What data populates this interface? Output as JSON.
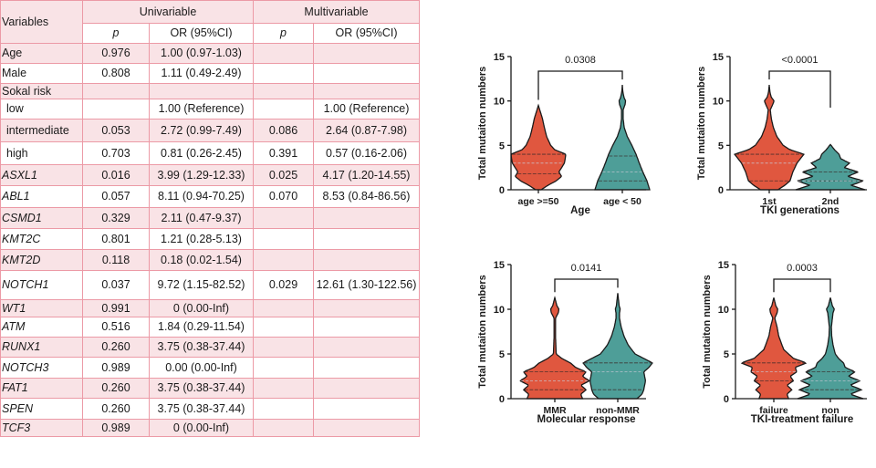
{
  "table": {
    "header": {
      "variables": "Variables",
      "univariable": "Univariable",
      "multivariable": "Multivariable",
      "p": "p",
      "or": "OR (95%CI)"
    },
    "rows": [
      {
        "variable": "Age",
        "italic": false,
        "indent": false,
        "uni_p": "0.976",
        "uni_or": "1.00 (0.97-1.03)",
        "multi_p": "",
        "multi_or": ""
      },
      {
        "variable": "Male",
        "italic": false,
        "indent": false,
        "uni_p": "0.808",
        "uni_or": "1.11 (0.49-2.49)",
        "multi_p": "",
        "multi_or": ""
      },
      {
        "variable": "Sokal risk",
        "italic": false,
        "indent": false,
        "uni_p": "",
        "uni_or": "",
        "multi_p": "",
        "multi_or": ""
      },
      {
        "variable": "low",
        "italic": false,
        "indent": true,
        "uni_p": "",
        "uni_or": "1.00 (Reference)",
        "multi_p": "",
        "multi_or": "1.00 (Reference)"
      },
      {
        "variable": "intermediate",
        "italic": false,
        "indent": true,
        "uni_p": "0.053",
        "uni_or": "2.72 (0.99-7.49)",
        "multi_p": "0.086",
        "multi_or": "2.64 (0.87-7.98)"
      },
      {
        "variable": "high",
        "italic": false,
        "indent": true,
        "uni_p": "0.703",
        "uni_or": "0.81 (0.26-2.45)",
        "multi_p": "0.391",
        "multi_or": "0.57 (0.16-2.06)"
      },
      {
        "variable": "ASXL1",
        "italic": true,
        "indent": false,
        "uni_p": "0.016",
        "uni_or": "3.99 (1.29-12.33)",
        "multi_p": "0.025",
        "multi_or": "4.17 (1.20-14.55)"
      },
      {
        "variable": "ABL1",
        "italic": true,
        "indent": false,
        "uni_p": "0.057",
        "uni_or": "8.11 (0.94-70.25)",
        "multi_p": "0.070",
        "multi_or": "8.53 (0.84-86.56)"
      },
      {
        "variable": "CSMD1",
        "italic": true,
        "indent": false,
        "uni_p": "0.329",
        "uni_or": "2.11 (0.47-9.37)",
        "multi_p": "",
        "multi_or": ""
      },
      {
        "variable": "KMT2C",
        "italic": true,
        "indent": false,
        "uni_p": "0.801",
        "uni_or": "1.21 (0.28-5.13)",
        "multi_p": "",
        "multi_or": ""
      },
      {
        "variable": "KMT2D",
        "italic": true,
        "indent": false,
        "uni_p": "0.118",
        "uni_or": "0.18 (0.02-1.54)",
        "multi_p": "",
        "multi_or": ""
      },
      {
        "variable": "NOTCH1",
        "italic": true,
        "indent": false,
        "uni_p": "0.037",
        "uni_or": "9.72 (1.15-82.52)",
        "multi_p": "0.029",
        "multi_or": "12.61 (1.30-122.56)"
      },
      {
        "variable": "WT1",
        "italic": true,
        "indent": false,
        "uni_p": "0.991",
        "uni_or": "0 (0.00-Inf)",
        "multi_p": "",
        "multi_or": ""
      },
      {
        "variable": "ATM",
        "italic": true,
        "indent": false,
        "uni_p": "0.516",
        "uni_or": "1.84 (0.29-11.54)",
        "multi_p": "",
        "multi_or": ""
      },
      {
        "variable": "RUNX1",
        "italic": true,
        "indent": false,
        "uni_p": "0.260",
        "uni_or": "3.75 (0.38-37.44)",
        "multi_p": "",
        "multi_or": ""
      },
      {
        "variable": "NOTCH3",
        "italic": true,
        "indent": false,
        "uni_p": "0.989",
        "uni_or": "0.00 (0.00-Inf)",
        "multi_p": "",
        "multi_or": ""
      },
      {
        "variable": "FAT1",
        "italic": true,
        "indent": false,
        "uni_p": "0.260",
        "uni_or": "3.75 (0.38-37.44)",
        "multi_p": "",
        "multi_or": ""
      },
      {
        "variable": "SPEN",
        "italic": true,
        "indent": false,
        "uni_p": "0.260",
        "uni_or": "3.75 (0.38-37.44)",
        "multi_p": "",
        "multi_or": ""
      },
      {
        "variable": "TCF3",
        "italic": true,
        "indent": false,
        "uni_p": "0.989",
        "uni_or": "0 (0.00-Inf)",
        "multi_p": "",
        "multi_or": ""
      }
    ]
  },
  "colors": {
    "orange": "#e0573f",
    "teal": "#4e9e98",
    "table_border": "#ec9aa6",
    "table_shade": "#f9e3e6"
  },
  "chart_data": [
    {
      "type": "violin",
      "title": "",
      "xlabel": "Age",
      "ylabel": "Total mutaiton numbers",
      "ylim": [
        0,
        15
      ],
      "yticks": [
        0,
        5,
        10,
        15
      ],
      "categories": [
        "age >=50",
        "age < 50"
      ],
      "p_value": "0.0308",
      "series": [
        {
          "name": "age >=50",
          "color": "orange",
          "min": 0,
          "max": 9.5,
          "q1": 1.8,
          "median": 3.0,
          "q3": 4.0,
          "density": [
            [
              0,
              0.1
            ],
            [
              0.5,
              0.35
            ],
            [
              1,
              0.65
            ],
            [
              1.5,
              0.85
            ],
            [
              2,
              0.75
            ],
            [
              2.5,
              0.85
            ],
            [
              3,
              0.95
            ],
            [
              3.5,
              0.98
            ],
            [
              4,
              1.0
            ],
            [
              4.5,
              0.6
            ],
            [
              5,
              0.45
            ],
            [
              6,
              0.3
            ],
            [
              7,
              0.22
            ],
            [
              8,
              0.15
            ],
            [
              9,
              0.05
            ],
            [
              9.5,
              0
            ]
          ]
        },
        {
          "name": "age < 50",
          "color": "teal",
          "min": 0,
          "max": 11.8,
          "q1": 1.0,
          "median": 2.0,
          "q3": 3.8,
          "density": [
            [
              0,
              1.0
            ],
            [
              1,
              0.9
            ],
            [
              2,
              0.75
            ],
            [
              3,
              0.62
            ],
            [
              4,
              0.5
            ],
            [
              5,
              0.35
            ],
            [
              6,
              0.18
            ],
            [
              7,
              0.07
            ],
            [
              8,
              0.03
            ],
            [
              9,
              0.03
            ],
            [
              9.6,
              0.1
            ],
            [
              10,
              0.12
            ],
            [
              10.4,
              0.06
            ],
            [
              11,
              0.02
            ],
            [
              11.8,
              0
            ]
          ]
        }
      ]
    },
    {
      "type": "violin",
      "title": "",
      "xlabel": "TKI generations",
      "ylabel": "Total mutaiton numbers",
      "ylim": [
        0,
        15
      ],
      "yticks": [
        0,
        5,
        10,
        15
      ],
      "categories": [
        "1st",
        "2nd"
      ],
      "p_value": "<0.0001",
      "series": [
        {
          "name": "1st",
          "color": "orange",
          "min": 0,
          "max": 11.8,
          "q1": 1.0,
          "median": 3.0,
          "q3": 4.0,
          "density": [
            [
              0,
              0.25
            ],
            [
              0.5,
              0.45
            ],
            [
              1,
              0.6
            ],
            [
              2,
              0.68
            ],
            [
              3,
              0.8
            ],
            [
              4,
              1.0
            ],
            [
              4.5,
              0.6
            ],
            [
              5,
              0.4
            ],
            [
              6,
              0.22
            ],
            [
              7,
              0.12
            ],
            [
              8,
              0.06
            ],
            [
              9,
              0.03
            ],
            [
              9.6,
              0.1
            ],
            [
              10,
              0.14
            ],
            [
              10.4,
              0.06
            ],
            [
              11,
              0.02
            ],
            [
              11.8,
              0
            ]
          ]
        },
        {
          "name": "2nd",
          "color": "teal",
          "min": 0,
          "max": 5.1,
          "q1": 1.0,
          "median": 1.0,
          "q3": 2.0,
          "density": [
            [
              0,
              1.0
            ],
            [
              0.5,
              0.6
            ],
            [
              1,
              0.95
            ],
            [
              1.5,
              0.5
            ],
            [
              2,
              0.8
            ],
            [
              2.5,
              0.4
            ],
            [
              3,
              0.55
            ],
            [
              3.5,
              0.3
            ],
            [
              4,
              0.25
            ],
            [
              4.5,
              0.12
            ],
            [
              5.1,
              0
            ]
          ]
        }
      ]
    },
    {
      "type": "violin",
      "title": "",
      "xlabel": "Molecular response",
      "ylabel": "Total mutaiton numbers",
      "ylim": [
        0,
        15
      ],
      "yticks": [
        0,
        5,
        10,
        15
      ],
      "categories": [
        "MMR",
        "non-MMR"
      ],
      "p_value": "0.0141",
      "series": [
        {
          "name": "MMR",
          "color": "orange",
          "min": 0,
          "max": 11.3,
          "q1": 1.0,
          "median": 2.0,
          "q3": 3.0,
          "density": [
            [
              0,
              0.8
            ],
            [
              0.5,
              0.75
            ],
            [
              1,
              0.9
            ],
            [
              1.5,
              0.75
            ],
            [
              2,
              1.0
            ],
            [
              2.5,
              0.8
            ],
            [
              3,
              0.9
            ],
            [
              3.5,
              0.6
            ],
            [
              4,
              0.45
            ],
            [
              4.5,
              0.2
            ],
            [
              5,
              0.04
            ],
            [
              7,
              0.02
            ],
            [
              9,
              0.02
            ],
            [
              9.6,
              0.1
            ],
            [
              10,
              0.12
            ],
            [
              10.4,
              0.06
            ],
            [
              11.3,
              0
            ]
          ]
        },
        {
          "name": "non-MMR",
          "color": "teal",
          "min": 0,
          "max": 11.8,
          "q1": 1.0,
          "median": 3.0,
          "q3": 4.0,
          "density": [
            [
              0,
              0.55
            ],
            [
              0.5,
              0.7
            ],
            [
              1,
              0.75
            ],
            [
              2,
              0.8
            ],
            [
              3,
              0.75
            ],
            [
              3.5,
              0.9
            ],
            [
              4,
              1.0
            ],
            [
              4.5,
              0.75
            ],
            [
              5,
              0.5
            ],
            [
              6,
              0.3
            ],
            [
              7,
              0.18
            ],
            [
              8,
              0.1
            ],
            [
              9,
              0.05
            ],
            [
              9.6,
              0.05
            ],
            [
              10,
              0.07
            ],
            [
              10.4,
              0.04
            ],
            [
              11.8,
              0
            ]
          ]
        }
      ]
    },
    {
      "type": "violin",
      "title": "",
      "xlabel": "TKI-treatment failure",
      "ylabel": "Total mutaiton numbers",
      "ylim": [
        0,
        15
      ],
      "yticks": [
        0,
        5,
        10,
        15
      ],
      "categories": [
        "failure",
        "non"
      ],
      "p_value": "0.0003",
      "series": [
        {
          "name": "failure",
          "color": "orange",
          "min": 0,
          "max": 11.3,
          "q1": 2.0,
          "median": 3.0,
          "q3": 4.0,
          "density": [
            [
              0,
              0.45
            ],
            [
              0.5,
              0.4
            ],
            [
              1,
              0.55
            ],
            [
              1.5,
              0.4
            ],
            [
              2,
              0.6
            ],
            [
              2.5,
              0.5
            ],
            [
              3,
              0.7
            ],
            [
              3.5,
              0.65
            ],
            [
              4,
              1.0
            ],
            [
              4.5,
              0.6
            ],
            [
              5,
              0.45
            ],
            [
              5.5,
              0.3
            ],
            [
              6,
              0.25
            ],
            [
              7,
              0.15
            ],
            [
              8,
              0.1
            ],
            [
              9,
              0.03
            ],
            [
              9.6,
              0.1
            ],
            [
              10,
              0.12
            ],
            [
              10.4,
              0.06
            ],
            [
              11.3,
              0
            ]
          ]
        },
        {
          "name": "non",
          "color": "teal",
          "min": 0,
          "max": 11.3,
          "q1": 1.0,
          "median": 2.0,
          "q3": 3.0,
          "density": [
            [
              0,
              1.0
            ],
            [
              0.5,
              0.6
            ],
            [
              1,
              0.95
            ],
            [
              1.5,
              0.6
            ],
            [
              2,
              0.9
            ],
            [
              2.5,
              0.55
            ],
            [
              3,
              0.75
            ],
            [
              3.5,
              0.45
            ],
            [
              4,
              0.4
            ],
            [
              4.5,
              0.25
            ],
            [
              5,
              0.15
            ],
            [
              6,
              0.08
            ],
            [
              7,
              0.04
            ],
            [
              8,
              0.03
            ],
            [
              9.6,
              0.08
            ],
            [
              10,
              0.12
            ],
            [
              10.4,
              0.06
            ],
            [
              11.3,
              0
            ]
          ]
        }
      ]
    }
  ]
}
